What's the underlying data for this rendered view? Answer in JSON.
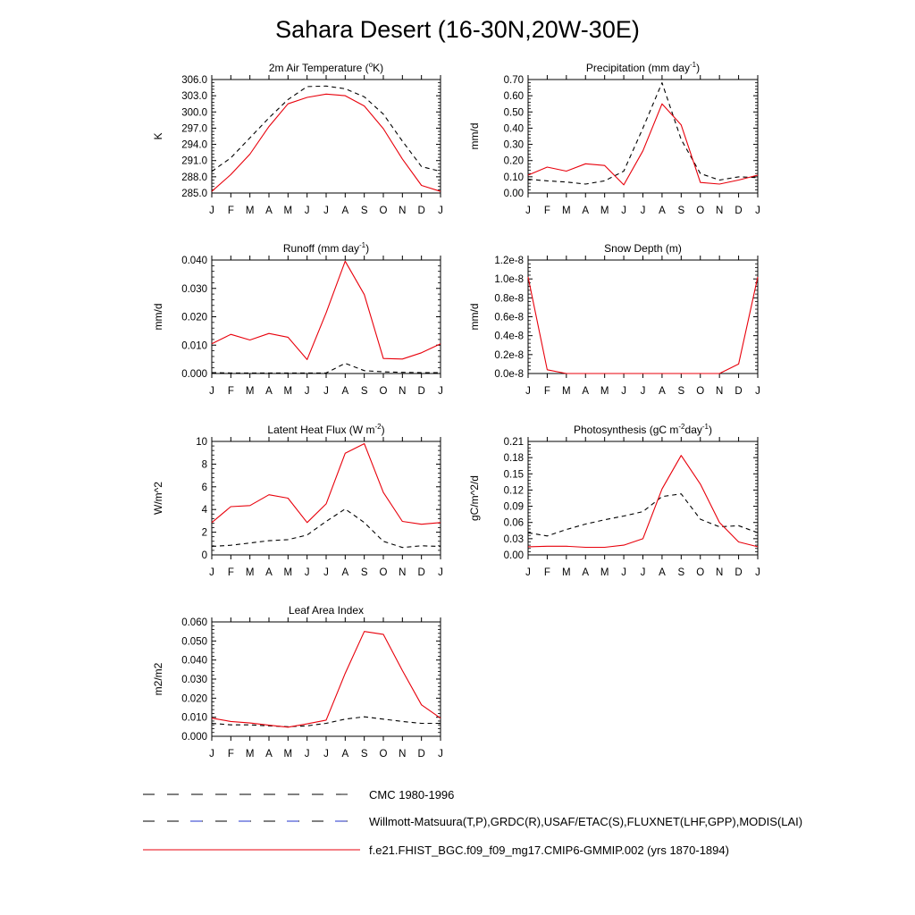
{
  "title": "Sahara Desert (16-30N,20W-30E)",
  "months": [
    "J",
    "F",
    "M",
    "A",
    "M",
    "J",
    "J",
    "A",
    "S",
    "O",
    "N",
    "D",
    "J"
  ],
  "colors": {
    "model": "#e8000b",
    "obs": "#000000",
    "obs_alt": "#2233cc"
  },
  "chart_data": [
    {
      "type": "line",
      "title": "2m Air Temperature (°K)",
      "title_parts": [
        "2m Air Temperature (",
        "o",
        "K)"
      ],
      "title_styles": [
        "n",
        "sup",
        "n"
      ],
      "ylabel": "K",
      "ylim": [
        285.0,
        306.0
      ],
      "yticks": [
        285.0,
        288.0,
        291.0,
        294.0,
        297.0,
        300.0,
        303.0,
        306.0
      ],
      "ytick_labels": [
        "285.0",
        "288.0",
        "291.0",
        "294.0",
        "297.0",
        "300.0",
        "303.0",
        "306.0"
      ],
      "series": [
        {
          "name": "CMC 1980-1996",
          "style": "dashed",
          "values": [
            289.0,
            291.5,
            295.2,
            298.9,
            302.3,
            304.7,
            304.8,
            304.3,
            302.8,
            299.6,
            294.6,
            289.9,
            289.0
          ]
        },
        {
          "name": "f.e21.FHIST_BGC.f09_f09_mg17.CMIP6-GMMIP.002 (yrs 1870-1894)",
          "style": "solid",
          "values": [
            285.3,
            288.4,
            292.2,
            297.3,
            301.5,
            302.7,
            303.3,
            303.0,
            301.1,
            296.9,
            291.3,
            286.4,
            285.3
          ]
        }
      ]
    },
    {
      "type": "line",
      "title": "Precipitation (mm day-1)",
      "title_parts": [
        "Precipitation (mm day",
        "-1",
        ")"
      ],
      "title_styles": [
        "n",
        "sup",
        "n"
      ],
      "ylabel": "mm/d",
      "ylim": [
        0.0,
        0.7
      ],
      "yticks": [
        0.0,
        0.1,
        0.2,
        0.3,
        0.4,
        0.5,
        0.6,
        0.7
      ],
      "ytick_labels": [
        "0.00",
        "0.10",
        "0.20",
        "0.30",
        "0.40",
        "0.50",
        "0.60",
        "0.70"
      ],
      "series": [
        {
          "name": "Willmott-Matsuura(T,P),GRDC(R),USAF/ETAC(S),FLUXNET(LHF,GPP),MODIS(LAI)",
          "style": "dashed",
          "values": [
            0.085,
            0.075,
            0.068,
            0.055,
            0.075,
            0.135,
            0.4,
            0.68,
            0.33,
            0.12,
            0.08,
            0.1,
            0.095
          ]
        },
        {
          "name": "f.e21.FHIST_BGC.f09_f09_mg17.CMIP6-GMMIP.002 (yrs 1870-1894)",
          "style": "solid",
          "values": [
            0.11,
            0.16,
            0.135,
            0.18,
            0.17,
            0.05,
            0.26,
            0.55,
            0.42,
            0.065,
            0.055,
            0.08,
            0.11
          ]
        }
      ]
    },
    {
      "type": "line",
      "title": "Runoff (mm day-1)",
      "title_parts": [
        "Runoff (mm day",
        "-1",
        ")"
      ],
      "title_styles": [
        "n",
        "sup",
        "n"
      ],
      "ylabel": "mm/d",
      "ylim": [
        0.0,
        0.04
      ],
      "yticks": [
        0.0,
        0.01,
        0.02,
        0.03,
        0.04
      ],
      "ytick_labels": [
        "0.000",
        "0.010",
        "0.020",
        "0.030",
        "0.040"
      ],
      "series": [
        {
          "name": "Willmott-Matsuura(T,P),GRDC(R),USAF/ETAC(S),FLUXNET(LHF,GPP),MODIS(LAI)",
          "style": "dashed",
          "values": [
            0.0003,
            0.0002,
            0.0002,
            0.0002,
            0.0002,
            0.0002,
            0.0002,
            0.0036,
            0.001,
            0.0006,
            0.0004,
            0.0003,
            0.0003
          ]
        },
        {
          "name": "f.e21.FHIST_BGC.f09_f09_mg17.CMIP6-GMMIP.002 (yrs 1870-1894)",
          "style": "solid",
          "values": [
            0.0105,
            0.0138,
            0.0118,
            0.0141,
            0.0128,
            0.0049,
            0.0214,
            0.0396,
            0.0278,
            0.0053,
            0.0051,
            0.0073,
            0.0105
          ]
        }
      ]
    },
    {
      "type": "line",
      "title": "Snow Depth (m)",
      "title_parts": [
        "Snow Depth (m)"
      ],
      "title_styles": [
        "n"
      ],
      "ylabel": "mm/d",
      "ylim": [
        0.0,
        1.2e-08
      ],
      "yticks": [
        0.0,
        2e-09,
        4e-09,
        6e-09,
        8e-09,
        1e-08,
        1.2e-08
      ],
      "ytick_labels": [
        "0.0e-8",
        "0.2e-8",
        "0.4e-8",
        "0.6e-8",
        "0.8e-8",
        "1.0e-8",
        "1.2e-8"
      ],
      "series": [
        {
          "name": "CMC 1980-1996",
          "style": "dashed",
          "values": [
            0,
            0,
            0,
            0,
            0,
            0,
            0,
            0,
            0,
            0,
            0,
            0,
            0
          ]
        },
        {
          "name": "f.e21.FHIST_BGC.f09_f09_mg17.CMIP6-GMMIP.002 (yrs 1870-1894)",
          "style": "solid",
          "values": [
            1.02e-08,
            4e-10,
            0.0,
            0.0,
            0.0,
            0.0,
            0.0,
            0.0,
            0.0,
            0.0,
            0.0,
            1e-09,
            1.02e-08
          ]
        }
      ]
    },
    {
      "type": "line",
      "title": "Latent Heat Flux (W m-2)",
      "title_parts": [
        "Latent Heat Flux (W m",
        "-2",
        ")"
      ],
      "title_styles": [
        "n",
        "sup",
        "n"
      ],
      "ylabel": "W/m^2",
      "ylim": [
        0,
        10
      ],
      "yticks": [
        0,
        2,
        4,
        6,
        8,
        10
      ],
      "ytick_labels": [
        "0",
        "2",
        "4",
        "6",
        "8",
        "10"
      ],
      "series": [
        {
          "name": "Willmott-Matsuura(T,P),GRDC(R),USAF/ETAC(S),FLUXNET(LHF,GPP),MODIS(LAI)",
          "style": "dashed",
          "values": [
            0.75,
            0.85,
            1.05,
            1.25,
            1.35,
            1.75,
            2.95,
            4.05,
            2.85,
            1.2,
            0.65,
            0.8,
            0.75
          ]
        },
        {
          "name": "f.e21.FHIST_BGC.f09_f09_mg17.CMIP6-GMMIP.002 (yrs 1870-1894)",
          "style": "solid",
          "values": [
            2.85,
            4.25,
            4.35,
            5.3,
            5.0,
            2.85,
            4.5,
            8.95,
            9.8,
            5.5,
            2.95,
            2.7,
            2.85
          ]
        }
      ]
    },
    {
      "type": "line",
      "title": "Photosynthesis (gC m-2day-1)",
      "title_parts": [
        "Photosynthesis (gC m",
        "-2",
        "day",
        "-1",
        ")"
      ],
      "title_styles": [
        "n",
        "sup",
        "n",
        "sup",
        "n"
      ],
      "ylabel": "gC/m^2/d",
      "ylim": [
        0.0,
        0.21
      ],
      "yticks": [
        0.0,
        0.03,
        0.06,
        0.09,
        0.12,
        0.15,
        0.18,
        0.21
      ],
      "ytick_labels": [
        "0.00",
        "0.03",
        "0.06",
        "0.09",
        "0.12",
        "0.15",
        "0.18",
        "0.21"
      ],
      "series": [
        {
          "name": "Willmott-Matsuura(T,P),GRDC(R),USAF/ETAC(S),FLUXNET(LHF,GPP),MODIS(LAI)",
          "style": "dashed",
          "values": [
            0.041,
            0.035,
            0.047,
            0.057,
            0.065,
            0.072,
            0.08,
            0.108,
            0.113,
            0.066,
            0.052,
            0.054,
            0.041
          ]
        },
        {
          "name": "f.e21.FHIST_BGC.f09_f09_mg17.CMIP6-GMMIP.002 (yrs 1870-1894)",
          "style": "solid",
          "values": [
            0.015,
            0.016,
            0.016,
            0.014,
            0.014,
            0.018,
            0.03,
            0.122,
            0.184,
            0.131,
            0.06,
            0.024,
            0.015
          ]
        }
      ]
    },
    {
      "type": "line",
      "title": "Leaf Area Index",
      "title_parts": [
        "Leaf Area Index"
      ],
      "title_styles": [
        "n"
      ],
      "ylabel": "m2/m2",
      "ylim": [
        0.0,
        0.06
      ],
      "yticks": [
        0.0,
        0.01,
        0.02,
        0.03,
        0.04,
        0.05,
        0.06
      ],
      "ytick_labels": [
        "0.000",
        "0.010",
        "0.020",
        "0.030",
        "0.040",
        "0.050",
        "0.060"
      ],
      "series": [
        {
          "name": "Willmott-Matsuura(T,P),GRDC(R),USAF/ETAC(S),FLUXNET(LHF,GPP),MODIS(LAI)",
          "style": "dashed",
          "values": [
            0.0068,
            0.006,
            0.006,
            0.0055,
            0.005,
            0.0055,
            0.0068,
            0.009,
            0.0102,
            0.009,
            0.0078,
            0.0068,
            0.0068
          ]
        },
        {
          "name": "f.e21.FHIST_BGC.f09_f09_mg17.CMIP6-GMMIP.002 (yrs 1870-1894)",
          "style": "solid",
          "values": [
            0.0095,
            0.0078,
            0.007,
            0.0058,
            0.0048,
            0.0065,
            0.0085,
            0.033,
            0.055,
            0.0535,
            0.0345,
            0.0165,
            0.0095
          ]
        }
      ]
    }
  ],
  "legend": [
    {
      "label": "CMC 1980-1996",
      "style": "dashed",
      "color": "#000000"
    },
    {
      "label": "Willmott-Matsuura(T,P),GRDC(R),USAF/ETAC(S),FLUXNET(LHF,GPP),MODIS(LAI)",
      "style": "dashed",
      "color": "#000000"
    },
    {
      "label": "f.e21.FHIST_BGC.f09_f09_mg17.CMIP6-GMMIP.002 (yrs 1870-1894)",
      "style": "solid",
      "color": "#e8000b"
    }
  ]
}
